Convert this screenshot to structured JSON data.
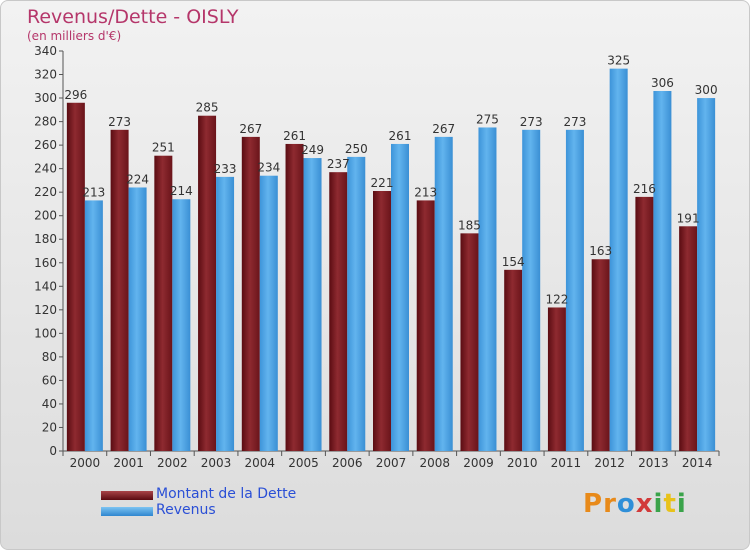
{
  "header": {
    "title": "Revenus/Dette - OISLY",
    "subtitle": "(en milliers d'€)"
  },
  "chart_data": {
    "type": "bar",
    "categories": [
      "2000",
      "2001",
      "2002",
      "2003",
      "2004",
      "2005",
      "2006",
      "2007",
      "2008",
      "2009",
      "2010",
      "2011",
      "2012",
      "2013",
      "2014"
    ],
    "series": [
      {
        "name": "Montant de la Dette",
        "color": "#7a1a1f",
        "values": [
          296,
          273,
          251,
          285,
          267,
          261,
          237,
          221,
          213,
          185,
          154,
          122,
          163,
          216,
          191
        ]
      },
      {
        "name": "Revenus",
        "color": "#4aa3e6",
        "values": [
          213,
          224,
          214,
          233,
          234,
          249,
          250,
          261,
          267,
          275,
          273,
          273,
          325,
          306,
          300
        ]
      }
    ],
    "ylim": [
      0,
      340
    ],
    "ytick_step": 20,
    "grid": false,
    "legend_position": "bottom-left"
  },
  "logo": {
    "letters": [
      "P",
      "r",
      "o",
      "x",
      "i",
      "t",
      "i"
    ],
    "colors": [
      "#e88a1a",
      "#e88a1a",
      "#2f8fd8",
      "#d23a3a",
      "#3aa34a",
      "#e8c21a",
      "#3aa34a"
    ]
  }
}
